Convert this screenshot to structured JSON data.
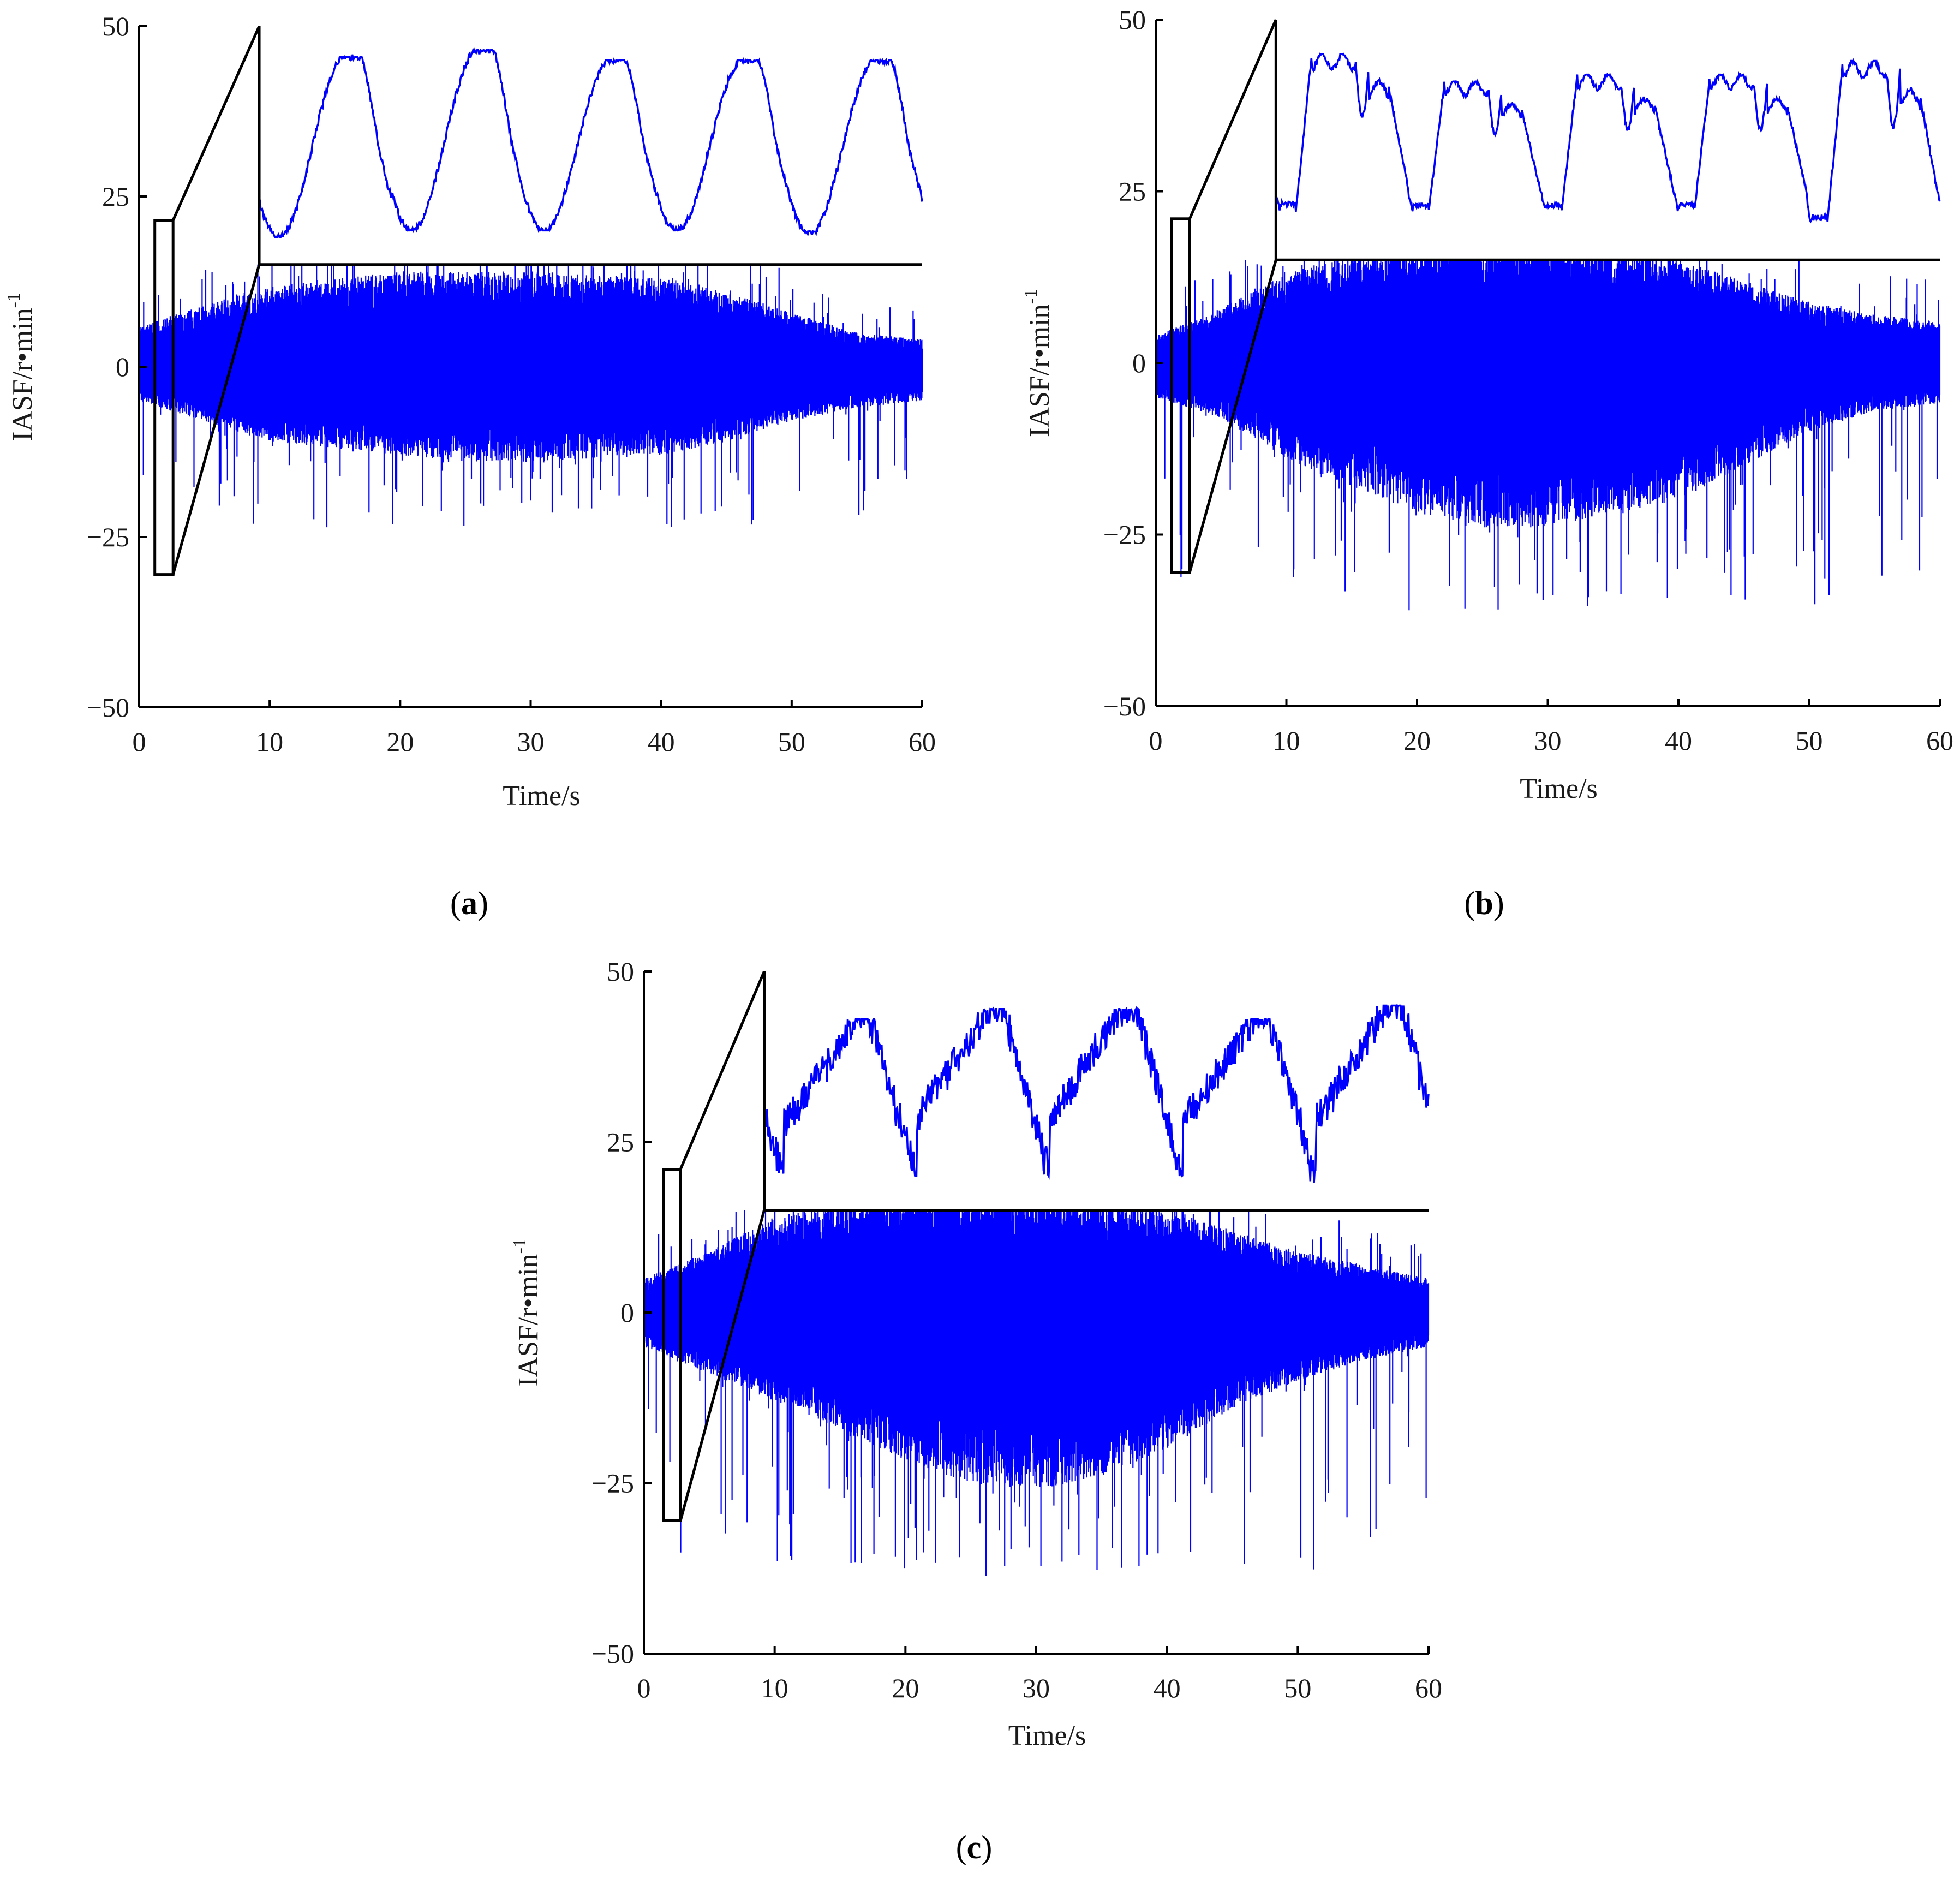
{
  "figure": {
    "panels": [
      "a",
      "b",
      "c"
    ]
  },
  "colors": {
    "signal": "#0000ff",
    "axis": "#000000"
  },
  "chart_data": [
    {
      "id": "a",
      "panel_label": "a",
      "type": "line",
      "title": "",
      "xlabel": "Time/s",
      "ylabel": "IASF/r•min",
      "ylabel_superscript": "-1",
      "xlim": [
        0,
        60
      ],
      "ylim": [
        -50,
        50
      ],
      "xticks": [
        "0",
        "10",
        "20",
        "30",
        "40",
        "50",
        "60"
      ],
      "yticks": [
        "50",
        "25",
        "0",
        "−25",
        "−50"
      ],
      "envelope": {
        "time": [
          0,
          5,
          10,
          15,
          20,
          25,
          30,
          35,
          40,
          45,
          50,
          55,
          60
        ],
        "upper": [
          6,
          9,
          12,
          13,
          14,
          14,
          14,
          13.5,
          13,
          11,
          8,
          5,
          4
        ],
        "lower": [
          -5,
          -8,
          -11,
          -12,
          -13,
          -14,
          -14,
          -13.5,
          -13,
          -11,
          -8,
          -6,
          -5
        ],
        "spike_min": -25
      },
      "zoom_window": {
        "x": [
          1.2,
          2.6
        ],
        "y": [
          -30.5,
          21.5
        ]
      },
      "inset": {
        "cycles": 5,
        "peak_values": [
          45.5,
          46.5,
          45,
          45,
          45
        ],
        "trough_values": [
          19,
          20,
          20,
          20,
          19.5
        ],
        "shape": "sinusoid with shoulder"
      }
    },
    {
      "id": "b",
      "panel_label": "b",
      "type": "line",
      "title": "",
      "xlabel": "Time/s",
      "ylabel": "IASF/r•min",
      "ylabel_superscript": "-1",
      "xlim": [
        0,
        60
      ],
      "ylim": [
        -50,
        50
      ],
      "xticks": [
        "0",
        "10",
        "20",
        "30",
        "40",
        "50",
        "60"
      ],
      "yticks": [
        "50",
        "25",
        "0",
        "−25",
        "−50"
      ],
      "envelope": {
        "time": [
          0,
          5,
          10,
          15,
          20,
          25,
          30,
          35,
          40,
          45,
          50,
          55,
          60
        ],
        "upper": [
          4,
          8,
          13,
          16,
          17,
          18,
          18,
          17,
          15,
          12,
          9,
          7,
          6
        ],
        "lower": [
          -5,
          -8,
          -14,
          -18,
          -22,
          -24,
          -24,
          -22,
          -20,
          -15,
          -10,
          -7,
          -6
        ],
        "spike_min": -38
      },
      "zoom_window": {
        "x": [
          1.2,
          2.6
        ],
        "y": [
          -30.5,
          21
        ]
      },
      "inset": {
        "cycles": 5,
        "peak_values": [
          45,
          41,
          42,
          42,
          44
        ],
        "trough_values": [
          22,
          22,
          22,
          22,
          20
        ],
        "shape": "flat top with double bump"
      }
    },
    {
      "id": "c",
      "panel_label": "c",
      "type": "line",
      "title": "",
      "xlabel": "Time/s",
      "ylabel": "IASF/r•min",
      "ylabel_superscript": "-1",
      "xlim": [
        0,
        60
      ],
      "ylim": [
        -50,
        50
      ],
      "xticks": [
        "0",
        "10",
        "20",
        "30",
        "40",
        "50",
        "60"
      ],
      "yticks": [
        "50",
        "25",
        "0",
        "−25",
        "−50"
      ],
      "envelope": {
        "time": [
          0,
          5,
          10,
          15,
          20,
          25,
          30,
          35,
          40,
          45,
          50,
          55,
          60
        ],
        "upper": [
          5,
          9,
          14,
          16,
          17,
          18,
          17,
          16,
          15,
          12,
          9,
          7,
          5
        ],
        "lower": [
          -5,
          -9,
          -13,
          -17,
          -22,
          -25,
          -26,
          -24,
          -20,
          -14,
          -10,
          -7,
          -5
        ],
        "spike_min": -41
      },
      "zoom_window": {
        "x": [
          1.5,
          2.8
        ],
        "y": [
          -30.5,
          21
        ]
      },
      "inset": {
        "cycles": 5,
        "peak_values": [
          43,
          44.5,
          44.5,
          43,
          45
        ],
        "trough_values": [
          19,
          20,
          20,
          20,
          19
        ],
        "shape": "noisy triangular"
      }
    }
  ]
}
